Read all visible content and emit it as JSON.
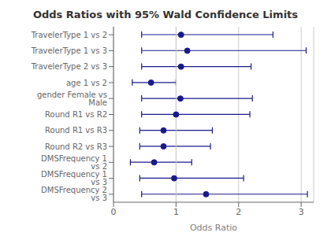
{
  "chart_data": {
    "type": "forest",
    "title": "Odds Ratios with 95% Wald Confidence Limits",
    "xlabel": "Odds Ratio",
    "categories": [
      "TravelerType 1 vs 2",
      "TravelerType 1 vs 3",
      "TravelerType 2 vs 3",
      "age 1 vs 2",
      "gender Female vs Male",
      "Round R1 vs R2",
      "Round R1 vs R3",
      "Round R2 vs R3",
      "DMSFrequency 1 vs 2",
      "DMSFrequency 1 vs 3",
      "DMSFrequency 2 vs 3"
    ],
    "values": [
      1.08,
      1.18,
      1.08,
      0.6,
      1.07,
      1.0,
      0.8,
      0.8,
      0.65,
      0.97,
      1.48
    ],
    "ci_low": [
      0.45,
      0.45,
      0.45,
      0.3,
      0.45,
      0.45,
      0.42,
      0.42,
      0.27,
      0.42,
      0.45
    ],
    "ci_high": [
      2.55,
      3.08,
      2.2,
      1.0,
      2.22,
      2.18,
      1.58,
      1.55,
      1.25,
      2.08,
      3.1
    ],
    "xlim": [
      0,
      3.2
    ],
    "xticks": [
      0,
      1,
      2,
      3
    ],
    "reference_line": 1,
    "grid": true,
    "color": "#1a1a8c"
  }
}
